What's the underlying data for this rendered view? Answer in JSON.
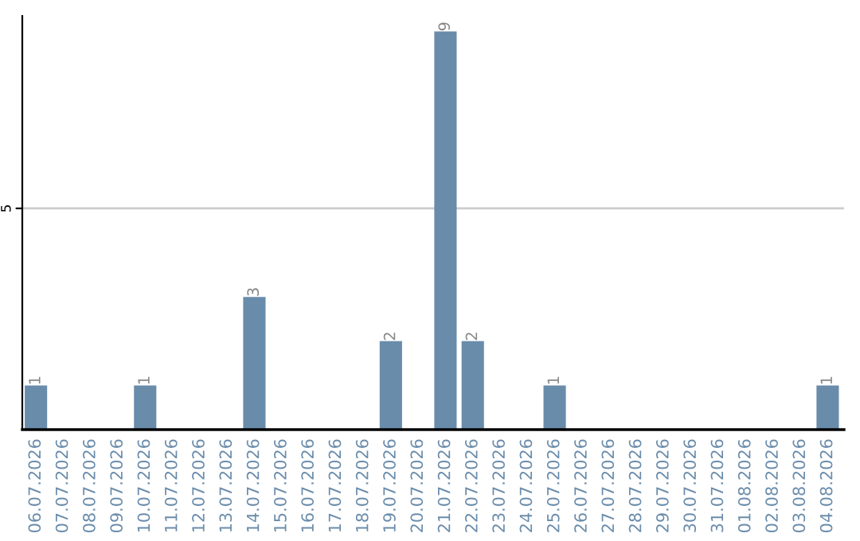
{
  "chart_data": {
    "type": "bar",
    "categories": [
      "06.07.2026",
      "07.07.2026",
      "08.07.2026",
      "09.07.2026",
      "10.07.2026",
      "11.07.2026",
      "12.07.2026",
      "13.07.2026",
      "14.07.2026",
      "15.07.2026",
      "16.07.2026",
      "17.07.2026",
      "18.07.2026",
      "19.07.2026",
      "20.07.2026",
      "21.07.2026",
      "22.07.2026",
      "23.07.2026",
      "24.07.2026",
      "25.07.2026",
      "26.07.2026",
      "27.07.2026",
      "28.07.2026",
      "29.07.2026",
      "30.07.2026",
      "31.07.2026",
      "01.08.2026",
      "02.08.2026",
      "03.08.2026",
      "04.08.2026"
    ],
    "values": [
      1,
      0,
      0,
      0,
      1,
      0,
      0,
      0,
      3,
      0,
      0,
      0,
      0,
      2,
      0,
      9,
      2,
      0,
      0,
      1,
      0,
      0,
      0,
      0,
      0,
      0,
      0,
      0,
      0,
      1
    ],
    "value_labels": [
      "1",
      null,
      null,
      null,
      "1",
      null,
      null,
      null,
      "3",
      null,
      null,
      null,
      null,
      "2",
      null,
      "9",
      "2",
      null,
      null,
      "1",
      null,
      null,
      null,
      null,
      null,
      null,
      null,
      null,
      null,
      "1"
    ],
    "color": "#6a8cab",
    "ylim": [
      0,
      9.35
    ],
    "yticks": [
      5
    ],
    "grid": "y",
    "legend": false
  }
}
